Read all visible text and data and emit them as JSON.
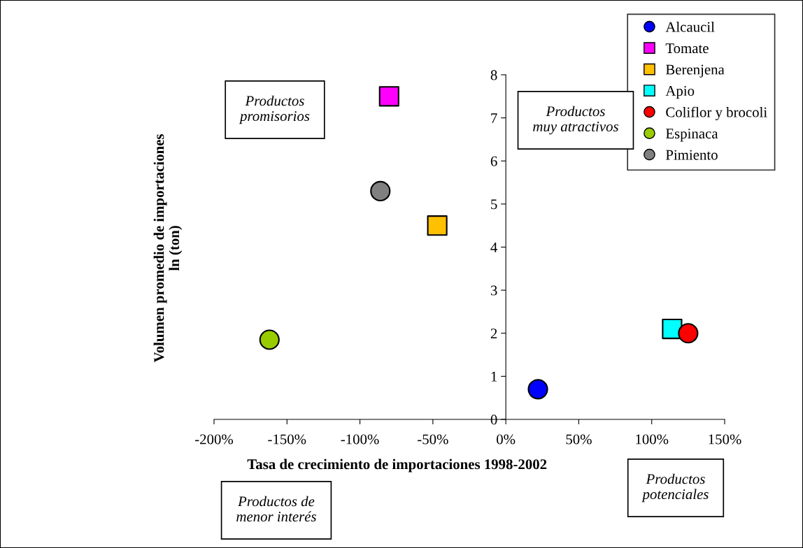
{
  "chart_data": {
    "type": "scatter",
    "xlabel": "Tasa de crecimiento de importaciones 1998-2002",
    "ylabel": "Volumen promedio de importaciones\nln (ton)",
    "xlim": [
      -200,
      150
    ],
    "xticks": [
      {
        "value": -200,
        "label": "-200%"
      },
      {
        "value": -150,
        "label": "-150%"
      },
      {
        "value": -100,
        "label": "-100%"
      },
      {
        "value": -50,
        "label": "-50%"
      },
      {
        "value": 0,
        "label": "0%"
      },
      {
        "value": 50,
        "label": "50%"
      },
      {
        "value": 100,
        "label": "100%"
      },
      {
        "value": 150,
        "label": "150%"
      }
    ],
    "ylim": [
      0,
      8
    ],
    "yticks": [
      0,
      1,
      2,
      3,
      4,
      5,
      6,
      7,
      8
    ],
    "grid": false,
    "legend": "top right",
    "series": [
      {
        "name": "Alcaucil",
        "color": "#0000ff",
        "marker": "circle",
        "x": [
          22
        ],
        "values": [
          0.7
        ]
      },
      {
        "name": "Tomate",
        "color": "#ff00ff",
        "marker": "square",
        "x": [
          -80
        ],
        "values": [
          7.5
        ]
      },
      {
        "name": "Berenjena",
        "color": "#ffc000",
        "marker": "square",
        "x": [
          -47
        ],
        "values": [
          4.5
        ]
      },
      {
        "name": "Apio",
        "color": "#00ffff",
        "marker": "square",
        "x": [
          114
        ],
        "values": [
          2.1
        ]
      },
      {
        "name": "Coliflor y brocoli",
        "color": "#ff0000",
        "marker": "circle",
        "x": [
          125
        ],
        "values": [
          2.0
        ]
      },
      {
        "name": "Espinaca",
        "color": "#99cc00",
        "marker": "circle",
        "x": [
          -162
        ],
        "values": [
          1.85
        ]
      },
      {
        "name": "Pimiento",
        "color": "#808080",
        "marker": "circle",
        "x": [
          -86
        ],
        "values": [
          5.3
        ]
      }
    ],
    "annotations": [
      "Productos\npromisorios",
      "Productos\nmuy atractivos",
      "Productos de\nmenor interés",
      "Productos\npotenciales"
    ]
  }
}
